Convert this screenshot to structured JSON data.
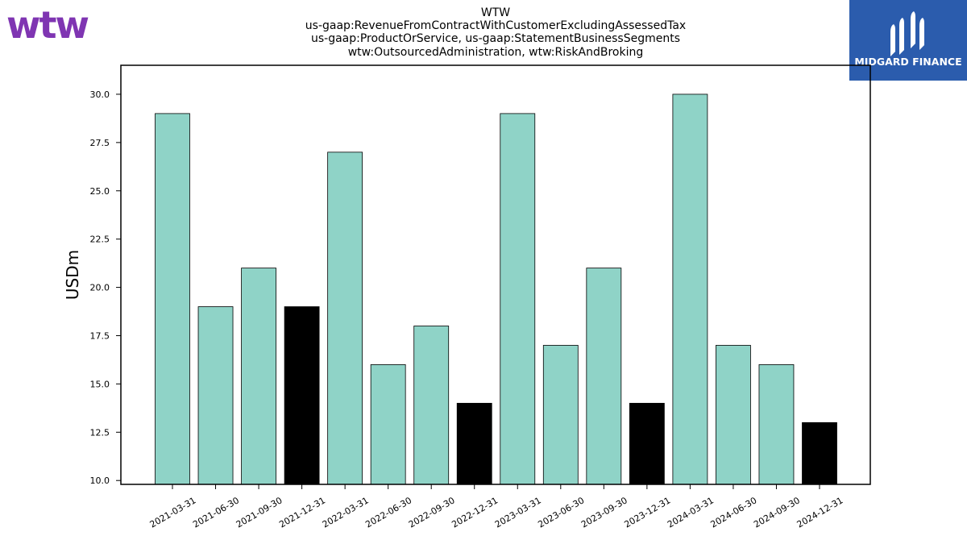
{
  "logos": {
    "left_text": "wtw",
    "left_color": "#7f35b2",
    "right_text": "MIDGARD FINANCE",
    "right_bg": "#2b5cad"
  },
  "chart_data": {
    "type": "bar",
    "title_lines": [
      "WTW",
      "us-gaap:RevenueFromContractWithCustomerExcludingAssessedTax",
      "us-gaap:ProductOrService, us-gaap:StatementBusinessSegments",
      "wtw:OutsourcedAdministration, wtw:RiskAndBroking"
    ],
    "ylabel": "USDm",
    "xlabel": "",
    "ylim": [
      9.8,
      31.5
    ],
    "yticks": [
      10.0,
      12.5,
      15.0,
      17.5,
      20.0,
      22.5,
      25.0,
      27.5,
      30.0
    ],
    "categories": [
      "2021-03-31",
      "2021-06-30",
      "2021-09-30",
      "2021-12-31",
      "2022-03-31",
      "2022-06-30",
      "2022-09-30",
      "2022-12-31",
      "2023-03-31",
      "2023-06-30",
      "2023-09-30",
      "2023-12-31",
      "2024-03-31",
      "2024-06-30",
      "2024-09-30",
      "2024-12-31"
    ],
    "values": [
      29,
      19,
      21,
      19,
      27,
      16,
      18,
      14,
      29,
      17,
      21,
      14,
      30,
      17,
      16,
      13
    ],
    "colors": {
      "quarter": "#8fd3c7",
      "year_end": "#000000"
    },
    "grid": false,
    "legend": "none"
  }
}
